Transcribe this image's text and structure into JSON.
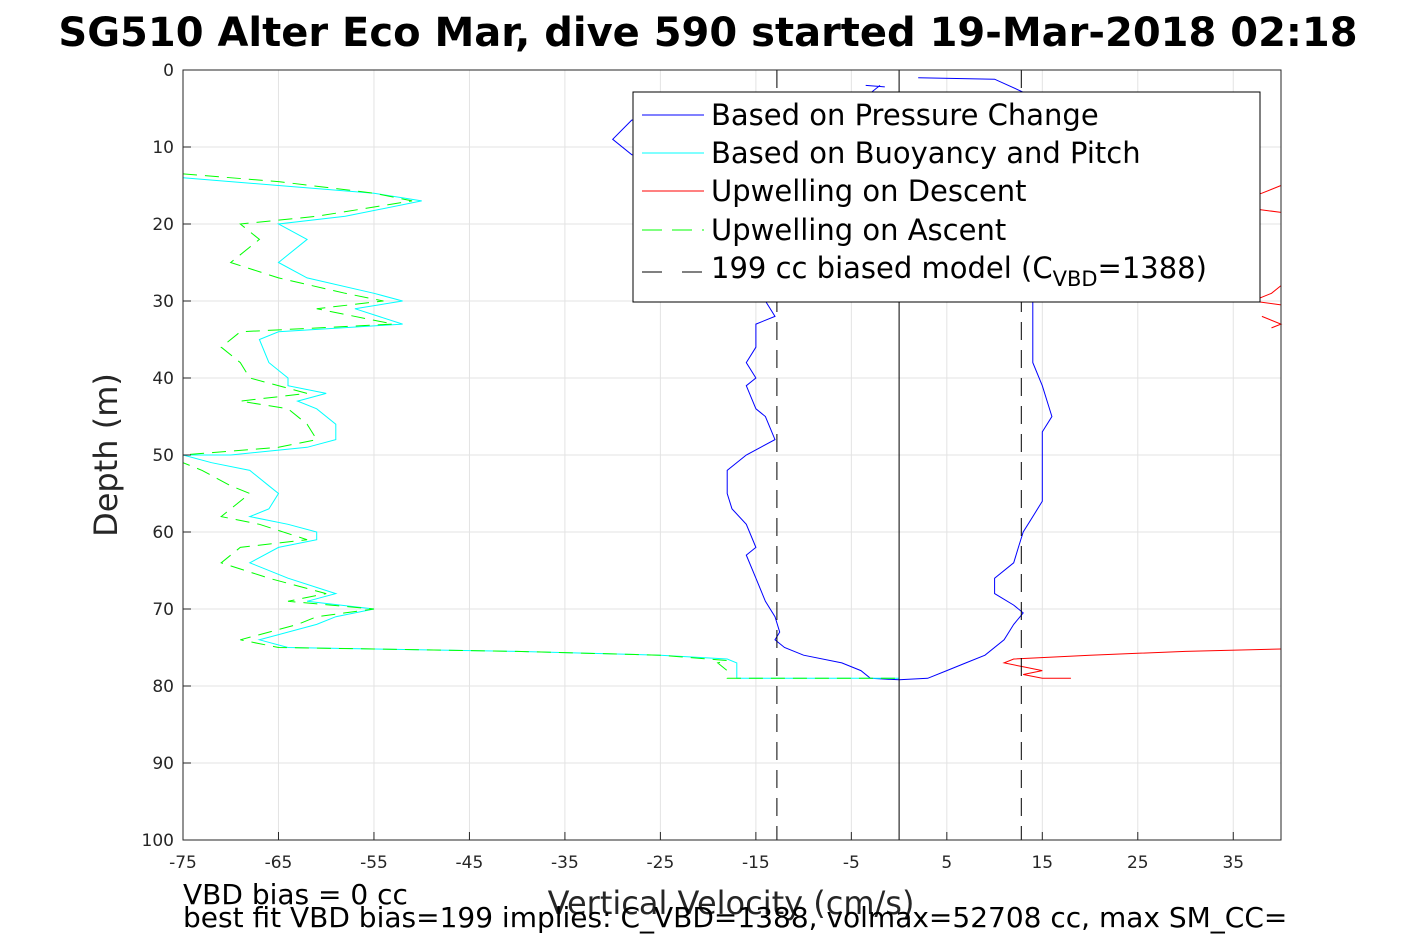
{
  "chart_data": {
    "type": "line",
    "title": "SG510 Alter Eco Mar, dive 590 started 19-Mar-2018 02:18",
    "xlabel": "Vertical Velocity (cm/s)",
    "ylabel": "Depth (m)",
    "xlim": [
      -75,
      40
    ],
    "ylim": [
      0,
      100
    ],
    "y_reversed": true,
    "grid": true,
    "x_ticks": [
      -75,
      -65,
      -55,
      -45,
      -35,
      -25,
      -15,
      -5,
      5,
      15,
      25,
      35
    ],
    "y_ticks": [
      0,
      10,
      20,
      30,
      40,
      50,
      60,
      70,
      80,
      90,
      100
    ],
    "legend_position": "top-right",
    "legend": [
      {
        "label": "Based on Pressure Change",
        "color": "#0000ff",
        "style": "solid"
      },
      {
        "label": "Based on Buoyancy and Pitch",
        "color": "#00ffff",
        "style": "solid"
      },
      {
        "label": "Upwelling on Descent",
        "color": "#ff0000",
        "style": "solid"
      },
      {
        "label": "Upwelling on Ascent",
        "color": "#00ff00",
        "style": "dashed"
      },
      {
        "label_main": "199 cc biased model (C",
        "label_sub": "VBD",
        "label_end": "=1388)",
        "color": "#000000",
        "style": "dashed"
      }
    ],
    "series": [
      {
        "name": "Based on Pressure Change",
        "color": "#0000ff",
        "style": "solid",
        "segments": [
          [
            [
              -2,
              2
            ],
            [
              -3,
              3
            ],
            [
              -5,
              4
            ],
            [
              -12,
              4.5
            ],
            [
              -20,
              5
            ],
            [
              -28,
              6.5
            ],
            [
              -30,
              9
            ],
            [
              -28,
              11
            ],
            [
              -24,
              12
            ],
            [
              -18,
              13
            ],
            [
              -14,
              14
            ],
            [
              -13,
              20
            ],
            [
              -14,
              25
            ],
            [
              -14,
              30
            ],
            [
              -13,
              32
            ],
            [
              -15,
              33
            ],
            [
              -15,
              36
            ],
            [
              -16,
              38
            ],
            [
              -15,
              40
            ],
            [
              -16,
              41
            ],
            [
              -15,
              44
            ],
            [
              -14,
              45
            ],
            [
              -13,
              48
            ],
            [
              -16,
              50
            ],
            [
              -18,
              52
            ],
            [
              -18,
              55
            ],
            [
              -17.5,
              57
            ],
            [
              -16,
              59
            ],
            [
              -15,
              62
            ],
            [
              -16,
              63
            ],
            [
              -15,
              66
            ],
            [
              -14,
              69
            ],
            [
              -13,
              71
            ],
            [
              -12.5,
              73
            ],
            [
              -13,
              74
            ],
            [
              -12,
              75
            ],
            [
              -10,
              76
            ],
            [
              -6,
              77
            ],
            [
              -4,
              78
            ],
            [
              -3,
              79
            ],
            [
              0,
              79.2
            ],
            [
              3,
              79
            ],
            [
              5,
              78
            ],
            [
              7,
              77
            ],
            [
              9,
              76
            ],
            [
              11,
              74
            ],
            [
              12,
              72
            ],
            [
              13,
              70.5
            ],
            [
              12,
              69.5
            ],
            [
              10,
              68
            ],
            [
              10,
              66
            ],
            [
              12,
              64
            ],
            [
              12.5,
              62
            ],
            [
              13,
              60
            ],
            [
              14,
              58
            ],
            [
              15,
              56
            ],
            [
              15,
              53
            ],
            [
              15,
              50
            ],
            [
              15,
              47
            ],
            [
              16,
              45
            ],
            [
              15.5,
              43
            ],
            [
              15,
              41
            ],
            [
              14,
              38
            ],
            [
              14,
              36
            ],
            [
              14,
              33
            ],
            [
              14,
              31
            ],
            [
              14,
              28
            ],
            [
              14,
              25
            ],
            [
              13,
              18
            ],
            [
              12,
              12
            ],
            [
              13,
              8
            ],
            [
              15,
              4
            ],
            [
              10,
              1.2
            ],
            [
              2,
              1
            ]
          ],
          [
            [
              -3.5,
              2
            ],
            [
              -1.5,
              2.2
            ]
          ]
        ]
      },
      {
        "name": "Based on Buoyancy and Pitch",
        "color": "#00ffff",
        "style": "solid",
        "segments": [
          [
            [
              -75,
              14
            ],
            [
              -65,
              15
            ],
            [
              -55,
              16
            ],
            [
              -50,
              17
            ],
            [
              -58,
              19
            ],
            [
              -65,
              20
            ],
            [
              -62,
              22
            ],
            [
              -65,
              25
            ],
            [
              -62,
              27
            ],
            [
              -55,
              29
            ],
            [
              -52,
              30
            ],
            [
              -57,
              31
            ],
            [
              -52,
              33
            ],
            [
              -65,
              34
            ],
            [
              -67,
              35
            ],
            [
              -66,
              38
            ],
            [
              -64,
              40
            ],
            [
              -64,
              41
            ],
            [
              -60,
              42
            ],
            [
              -63,
              43
            ],
            [
              -61,
              44
            ],
            [
              -59,
              46
            ],
            [
              -59,
              48
            ],
            [
              -62,
              49
            ],
            [
              -70,
              50
            ],
            [
              -75,
              50
            ],
            [
              -72,
              51
            ],
            [
              -68,
              52
            ],
            [
              -66,
              54
            ],
            [
              -65,
              55
            ],
            [
              -66,
              57
            ],
            [
              -68,
              58
            ],
            [
              -64,
              59
            ],
            [
              -61,
              60
            ],
            [
              -61,
              61
            ],
            [
              -65,
              62
            ],
            [
              -68,
              64
            ],
            [
              -64,
              66
            ],
            [
              -59,
              68
            ],
            [
              -62,
              69
            ],
            [
              -55,
              70
            ],
            [
              -59,
              71
            ],
            [
              -61,
              72
            ],
            [
              -67,
              74
            ],
            [
              -64,
              75
            ],
            [
              -55,
              75.2
            ],
            [
              -40,
              75.5
            ],
            [
              -25,
              76
            ],
            [
              -18,
              76.5
            ],
            [
              -17,
              77
            ],
            [
              -17,
              79
            ],
            [
              -10,
              79
            ],
            [
              0,
              79
            ]
          ]
        ]
      },
      {
        "name": "Upwelling on Descent",
        "color": "#ff0000",
        "style": "solid",
        "segments": [
          [
            [
              40,
              15
            ],
            [
              38,
              16
            ],
            [
              35,
              17
            ]
          ],
          [
            [
              37,
              18
            ],
            [
              40,
              18.5
            ]
          ],
          [
            [
              40,
              28
            ],
            [
              39,
              29
            ],
            [
              37,
              30
            ],
            [
              40,
              30.5
            ]
          ],
          [
            [
              38,
              32
            ],
            [
              40,
              33
            ],
            [
              39,
              33.5
            ]
          ],
          [
            [
              40,
              75.2
            ],
            [
              30,
              75.5
            ],
            [
              20,
              76
            ],
            [
              12,
              76.5
            ],
            [
              11,
              77
            ],
            [
              13,
              77.5
            ],
            [
              15,
              78
            ],
            [
              13,
              78.5
            ],
            [
              15,
              79
            ],
            [
              18,
              79
            ]
          ]
        ]
      },
      {
        "name": "Upwelling on Ascent",
        "color": "#00ff00",
        "style": "dashed",
        "segments": [
          [
            [
              -75,
              13.5
            ],
            [
              -65,
              14.5
            ],
            [
              -55,
              16
            ],
            [
              -51,
              17
            ],
            [
              -61,
              19
            ],
            [
              -69,
              20
            ],
            [
              -67,
              22
            ],
            [
              -70,
              25
            ],
            [
              -65,
              27
            ],
            [
              -58,
              29
            ],
            [
              -54,
              30
            ],
            [
              -61,
              31
            ],
            [
              -53,
              33
            ],
            [
              -69,
              34
            ],
            [
              -71,
              36
            ],
            [
              -69,
              38
            ],
            [
              -68,
              40
            ],
            [
              -62,
              42
            ],
            [
              -69,
              43
            ],
            [
              -64,
              44
            ],
            [
              -62,
              46
            ],
            [
              -61,
              48
            ],
            [
              -65,
              49
            ],
            [
              -75,
              50
            ],
            [
              -75,
              51
            ],
            [
              -73,
              52
            ],
            [
              -70,
              54
            ],
            [
              -68,
              55
            ],
            [
              -70,
              57
            ],
            [
              -71,
              58
            ],
            [
              -67,
              59
            ],
            [
              -62,
              61
            ],
            [
              -69,
              62
            ],
            [
              -71,
              64
            ],
            [
              -66,
              66
            ],
            [
              -60,
              68
            ],
            [
              -64,
              69
            ],
            [
              -55,
              70
            ],
            [
              -61,
              71
            ],
            [
              -63,
              72
            ],
            [
              -69,
              74
            ],
            [
              -65,
              75
            ],
            [
              -55,
              75.2
            ],
            [
              -40,
              75.5
            ],
            [
              -25,
              76
            ],
            [
              -18,
              76.7
            ],
            [
              -19,
              77
            ],
            [
              -18,
              78
            ],
            [
              -18,
              79
            ],
            [
              -10,
              79
            ],
            [
              0,
              79
            ]
          ]
        ]
      },
      {
        "name": "199 cc biased model",
        "color": "#000000",
        "style": "dashed",
        "segments": [
          [
            [
              -12.8,
              0
            ],
            [
              -12.8,
              100
            ]
          ],
          [
            [
              12.8,
              0
            ],
            [
              12.8,
              100
            ]
          ]
        ]
      },
      {
        "name": "zero",
        "color": "#000000",
        "style": "solid",
        "segments": [
          [
            [
              0,
              0
            ],
            [
              0,
              100
            ]
          ]
        ]
      }
    ]
  },
  "notes": {
    "vbd_bias": "VBD bias = 0 cc",
    "best_fit": "best fit VBD bias=199 implies: C_VBD=1388, volmax=52708 cc, max SM_CC="
  }
}
